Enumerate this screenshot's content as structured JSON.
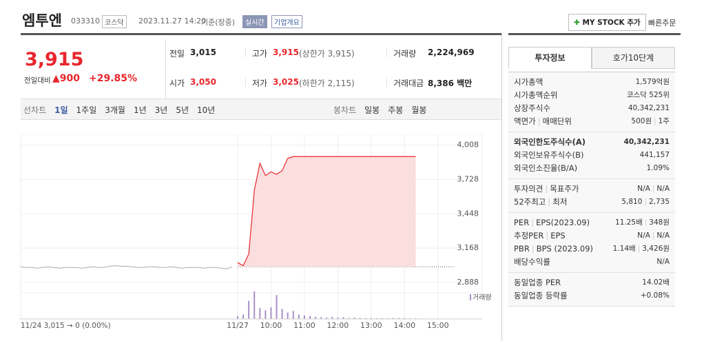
{
  "header": {
    "name": "엠투엔",
    "code": "033310",
    "market": "코스닥",
    "datetime": "2023.11.27 14:20",
    "basis": "기준(장중)",
    "badge": "실시간",
    "company_info": "기업개요",
    "mystock": "MY STOCK 추가",
    "quick_order": "빠른주문"
  },
  "quote": {
    "price": "3,915",
    "change_label": "전일대비",
    "change": "900",
    "rate": "+29.85%",
    "rows": [
      [
        {
          "label": "전일",
          "value": "3,015"
        },
        {
          "label": "고가",
          "value": "3,915",
          "note": "(상한가 3,915)"
        },
        {
          "label": "거래량",
          "value": "2,224,969"
        }
      ],
      [
        {
          "label": "시가",
          "value": "3,050"
        },
        {
          "label": "저가",
          "value": "3,025",
          "note": "(하한가 2,115)"
        },
        {
          "label": "거래대금",
          "value": "8,386 백만"
        }
      ]
    ]
  },
  "tabs": {
    "line_label": "선차트",
    "line_periods": [
      "1일",
      "1주일",
      "3개월",
      "1년",
      "3년",
      "5년",
      "10년"
    ],
    "candle_label": "봉차트",
    "candle_periods": [
      "일봉",
      "주봉",
      "월봉"
    ]
  },
  "chart_data": {
    "type": "line",
    "color": "#e8262c",
    "fill": "#fbdede",
    "reference": 3015,
    "categories": [
      "11/24",
      null,
      null,
      null,
      null,
      null,
      null,
      null,
      null,
      null,
      null,
      null,
      null,
      null,
      null,
      null,
      null,
      null,
      null,
      null,
      null,
      null,
      null,
      null,
      null,
      null,
      null,
      null,
      null,
      null,
      null,
      null,
      null,
      null,
      null,
      null,
      null,
      null,
      null,
      "11/27",
      null,
      null,
      null,
      null,
      null,
      "10:00",
      null,
      null,
      null,
      null,
      null,
      "11:00",
      null,
      null,
      null,
      null,
      null,
      "12:00",
      null,
      null,
      null,
      null,
      null,
      "13:00",
      null,
      null,
      null,
      null,
      null,
      "14:00",
      null,
      null,
      null,
      null,
      null,
      "15:00",
      null,
      null
    ],
    "prev_values": [
      3015,
      3010,
      3010,
      3005,
      3010,
      3015,
      3010,
      3005,
      3010,
      3010,
      3010,
      3005,
      3010,
      3015,
      3010,
      3010,
      3020,
      3025,
      3020,
      3020,
      3015,
      3010,
      3010,
      3015,
      3015,
      3010,
      3010,
      3015,
      3010,
      3005,
      3010,
      3010,
      3010,
      3005,
      3010,
      3010,
      3005,
      3000,
      3015,
      null,
      null,
      null,
      null,
      null,
      null,
      null,
      null,
      null,
      null,
      null,
      null,
      null,
      null,
      null,
      null,
      null,
      null,
      null,
      null,
      null,
      null,
      null,
      null,
      null,
      null,
      null,
      null,
      null,
      null,
      null,
      null,
      null,
      null,
      null,
      null,
      null,
      null,
      null
    ],
    "values": [
      null,
      null,
      null,
      null,
      null,
      null,
      null,
      null,
      null,
      null,
      null,
      null,
      null,
      null,
      null,
      null,
      null,
      null,
      null,
      null,
      null,
      null,
      null,
      null,
      null,
      null,
      null,
      null,
      null,
      null,
      null,
      null,
      null,
      null,
      null,
      null,
      null,
      null,
      null,
      3050,
      3025,
      3120,
      3640,
      3860,
      3760,
      3790,
      3770,
      3800,
      3900,
      3915,
      3915,
      3915,
      3915,
      3915,
      3915,
      3915,
      3915,
      3915,
      3915,
      3915,
      3915,
      3915,
      3915,
      3915,
      3915,
      3915,
      3915,
      3915,
      3915,
      3915,
      3915,
      3915,
      null,
      null,
      null,
      null,
      null,
      null
    ],
    "volume_name": "거래량",
    "volume_color": "#a88fc8",
    "volume": [
      5,
      3,
      2,
      2,
      3,
      2,
      2,
      1,
      2,
      2,
      1,
      2,
      3,
      2,
      2,
      4,
      3,
      2,
      2,
      2,
      3,
      2,
      2,
      2,
      3,
      2,
      2,
      3,
      2,
      2,
      3,
      2,
      2,
      3,
      2,
      2,
      3,
      4,
      5,
      40,
      60,
      250,
      380,
      150,
      120,
      160,
      330,
      140,
      90,
      110,
      60,
      50,
      40,
      30,
      25,
      20,
      30,
      20,
      25,
      15,
      20,
      15,
      12,
      15,
      10,
      12,
      10,
      15,
      12,
      10,
      8,
      10,
      null,
      null,
      null,
      null,
      null,
      null
    ],
    "ylim": [
      2860,
      4040
    ],
    "yticks": [
      {
        "value": 4008,
        "label": "4,008"
      },
      {
        "value": 3728,
        "label": "3,728"
      },
      {
        "value": 3448,
        "label": "3,448"
      },
      {
        "value": 3168,
        "label": "3,168"
      },
      {
        "value": 2888,
        "label": "2,888"
      }
    ],
    "footer": "11/24  3,015 → 0 (0.00%)"
  },
  "panel": {
    "tabs": [
      "투자정보",
      "호가10단계"
    ],
    "groups": [
      [
        {
          "labels": [
            "시가총액"
          ],
          "values": [
            "1,579억원"
          ]
        },
        {
          "labels": [
            "시가총액순위"
          ],
          "values": [
            "코스닥 525위"
          ]
        },
        {
          "labels": [
            "상장주식수"
          ],
          "values": [
            "40,342,231"
          ]
        },
        {
          "labels": [
            "액면가",
            "매매단위"
          ],
          "values": [
            "500원",
            "1주"
          ]
        }
      ],
      [
        {
          "labels": [
            "외국인한도주식수(A)"
          ],
          "values": [
            "40,342,231"
          ]
        },
        {
          "labels": [
            "외국인보유주식수(B)"
          ],
          "values": [
            "441,157"
          ]
        },
        {
          "labels": [
            "외국인소진율(B/A)"
          ],
          "values": [
            "1.09%"
          ]
        }
      ],
      [
        {
          "labels": [
            "투자의견",
            "목표주가"
          ],
          "values": [
            "N/A",
            "N/A"
          ]
        },
        {
          "labels": [
            "52주최고",
            "최저"
          ],
          "values": [
            "5,810",
            "2,735"
          ]
        }
      ],
      [
        {
          "labels": [
            "PER",
            "EPS(2023.09)"
          ],
          "values": [
            "11.25배",
            "348원"
          ]
        },
        {
          "labels": [
            "추정PER",
            "EPS"
          ],
          "values": [
            "N/A",
            "N/A"
          ]
        },
        {
          "labels": [
            "PBR",
            "BPS (2023.09)"
          ],
          "values": [
            "1.14배",
            "3,426원"
          ]
        },
        {
          "labels": [
            "배당수익률"
          ],
          "values": [
            "N/A"
          ]
        }
      ],
      [
        {
          "labels": [
            "동일업종 PER"
          ],
          "values": [
            "14.02배"
          ]
        },
        {
          "labels": [
            "동일업종 등락률"
          ],
          "values": [
            "+0.08%"
          ]
        }
      ]
    ]
  }
}
